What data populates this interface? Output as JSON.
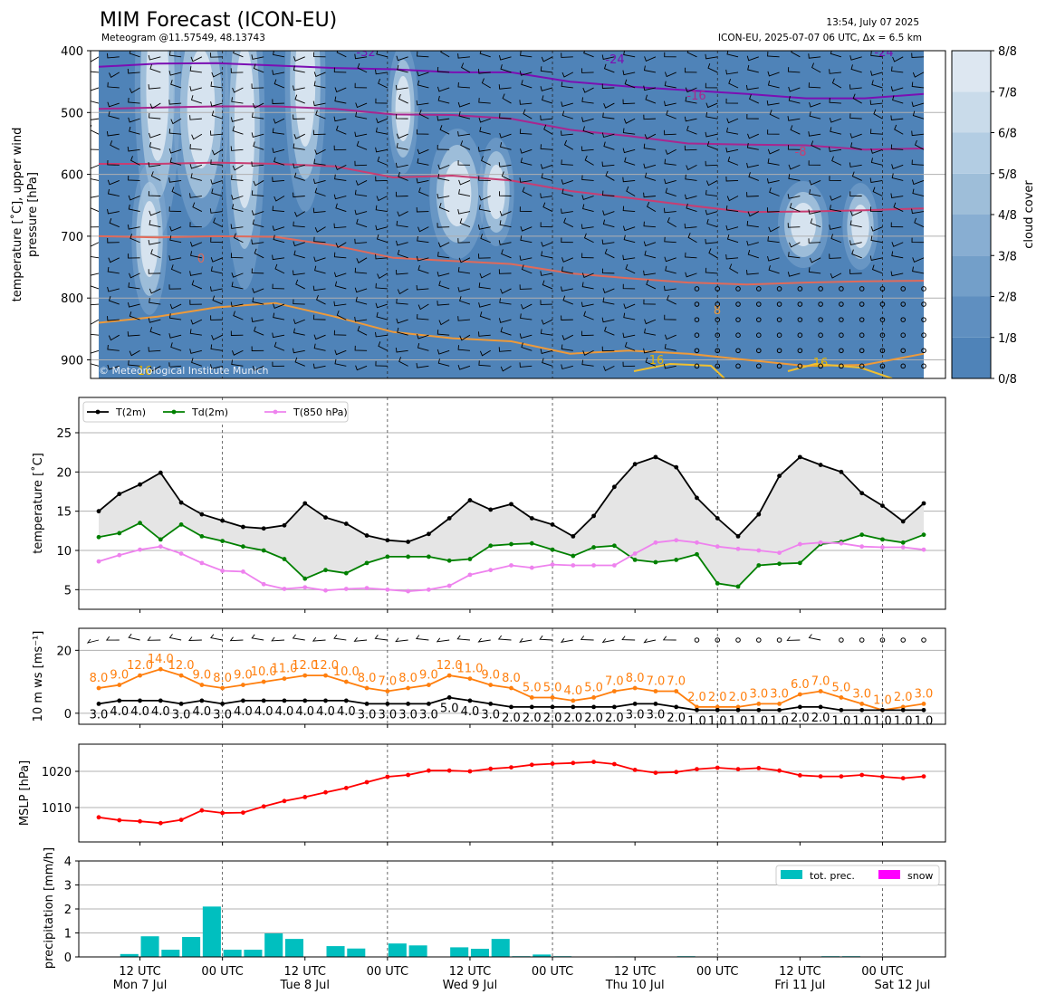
{
  "header": {
    "title": "MIM Forecast (ICON-EU)",
    "subtitle": "Meteogram @11.57549, 48.13743",
    "issued": "13:54, July 07 2025",
    "run_info": "ICON-EU, 2025-07-07 06 UTC, Δx = 6.5 km",
    "copyright": "© Meteorological Institute Munich"
  },
  "x_axis": {
    "tick_labels": [
      "12 UTC",
      "00 UTC",
      "12 UTC",
      "00 UTC",
      "12 UTC",
      "00 UTC",
      "12 UTC",
      "00 UTC",
      "12 UTC",
      "00 UTC"
    ],
    "day_labels": [
      "Mon 7 Jul",
      "Tue 8 Jul",
      "Wed 9 Jul",
      "Thu 10 Jul",
      "Fri 11 Jul",
      "Sat 12 Jul"
    ]
  },
  "chart_data": [
    {
      "type": "heatmap",
      "panel": "upper-air",
      "ylabel": "temperature [˚C], upper wind pressure [hPa]",
      "y_ticks": [
        400,
        500,
        600,
        700,
        800,
        900
      ],
      "ylim": [
        930,
        400
      ],
      "colorbar": {
        "label": "cloud cover",
        "ticks": [
          "0/8",
          "1/8",
          "2/8",
          "3/8",
          "4/8",
          "5/8",
          "6/8",
          "7/8",
          "8/8"
        ],
        "colors": [
          "#4f83b8",
          "#5f8fc0",
          "#739fc9",
          "#88aed2",
          "#9ebed9",
          "#b3cde3",
          "#c9dbea",
          "#dde7f1",
          "#f1f6fa"
        ]
      },
      "isotherm_labels": [
        "-32",
        "-24",
        "-24",
        "-16",
        "-8",
        "0",
        "8",
        "16",
        "16",
        "16"
      ],
      "isotherms": [
        {
          "label": "-24",
          "color": "#7b0fb3",
          "values": [
            426,
            421,
            420,
            424,
            428,
            430,
            435,
            435,
            450,
            458,
            464,
            470,
            477,
            477,
            470
          ]
        },
        {
          "label": "-16",
          "color": "#a8268f",
          "values": [
            494,
            492,
            490,
            490,
            494,
            503,
            504,
            510,
            528,
            538,
            550,
            552,
            553,
            560,
            558
          ]
        },
        {
          "label": "-8",
          "color": "#c83d72",
          "values": [
            583,
            583,
            581,
            583,
            587,
            605,
            602,
            610,
            627,
            638,
            650,
            661,
            660,
            658,
            655
          ]
        },
        {
          "label": "0",
          "color": "#e06a5a",
          "values": [
            700,
            702,
            700,
            701,
            715,
            735,
            740,
            745,
            760,
            768,
            775,
            778,
            775,
            773,
            772
          ]
        },
        {
          "label": "8",
          "color": "#ee9a3a",
          "values": [
            840,
            830,
            815,
            808,
            830,
            855,
            865,
            870,
            890,
            885,
            890,
            900,
            910,
            908,
            890
          ]
        }
      ]
    },
    {
      "type": "line",
      "panel": "temperature",
      "ylabel": "temperature [˚C]",
      "ylim": [
        2.5,
        29.5
      ],
      "y_ticks": [
        5,
        10,
        15,
        20,
        25
      ],
      "legend_position": "top-left",
      "series": [
        {
          "name": "T(2m)",
          "color": "#000000",
          "values": [
            15.0,
            17.2,
            18.4,
            19.9,
            16.1,
            14.6,
            13.8,
            13.0,
            12.8,
            13.2,
            16.0,
            14.2,
            13.4,
            11.9,
            11.3,
            11.1,
            12.1,
            14.1,
            16.4,
            15.2,
            15.9,
            14.1,
            13.3,
            11.8,
            14.4,
            18.1,
            21.0,
            21.9,
            20.6,
            16.7,
            14.1,
            11.8,
            14.6,
            19.5,
            21.9,
            20.9,
            20.0,
            17.3,
            15.7,
            13.7,
            16.0
          ]
        },
        {
          "name": "Td(2m)",
          "color": "#008000",
          "values": [
            11.7,
            12.2,
            13.5,
            11.4,
            13.3,
            11.8,
            11.2,
            10.5,
            10.0,
            8.9,
            6.4,
            7.5,
            7.1,
            8.4,
            9.2,
            9.2,
            9.2,
            8.7,
            8.9,
            10.6,
            10.8,
            10.9,
            10.1,
            9.3,
            10.4,
            10.6,
            8.8,
            8.5,
            8.8,
            9.5,
            5.8,
            5.4,
            8.1,
            8.3,
            8.4,
            10.8,
            11.1,
            12.0,
            11.4,
            11.0,
            12.0
          ]
        },
        {
          "name": "T(850 hPa)",
          "color": "#ee82ee",
          "values": [
            8.6,
            9.4,
            10.1,
            10.5,
            9.6,
            8.4,
            7.4,
            7.3,
            5.7,
            5.1,
            5.3,
            4.9,
            5.1,
            5.2,
            5.0,
            4.8,
            5.0,
            5.5,
            6.9,
            7.5,
            8.1,
            7.8,
            8.2,
            8.1,
            8.1,
            8.1,
            9.6,
            11.0,
            11.3,
            11.0,
            10.5,
            10.2,
            10.0,
            9.7,
            10.8,
            11.0,
            10.9,
            10.5,
            10.4,
            10.4,
            10.1
          ]
        }
      ]
    },
    {
      "type": "line",
      "panel": "wind",
      "ylabel": "10 m ws [ms⁻¹]",
      "ylim": [
        -3.5,
        27
      ],
      "y_ticks": [
        0,
        20
      ],
      "series": [
        {
          "name": "gust",
          "color": "#ff7f0e",
          "values": [
            8.0,
            9.0,
            12.0,
            14.0,
            12.0,
            9.0,
            8.0,
            9.0,
            10.0,
            11.0,
            12.0,
            12.0,
            10.0,
            8.0,
            7.0,
            8.0,
            9.0,
            12.0,
            11.0,
            9.0,
            8.0,
            5.0,
            5.0,
            4.0,
            5.0,
            7.0,
            8.0,
            7.0,
            7.0,
            2.0,
            2.0,
            2.0,
            3.0,
            3.0,
            6.0,
            7.0,
            5.0,
            3.0,
            1.0,
            2.0,
            3.0
          ]
        },
        {
          "name": "mean",
          "color": "#000000",
          "values": [
            3.0,
            4.0,
            4.0,
            4.0,
            3.0,
            4.0,
            3.0,
            4.0,
            4.0,
            4.0,
            4.0,
            4.0,
            4.0,
            3.0,
            3.0,
            3.0,
            3.0,
            5.0,
            4.0,
            3.0,
            2.0,
            2.0,
            2.0,
            2.0,
            2.0,
            2.0,
            3.0,
            3.0,
            2.0,
            1.0,
            1.0,
            1.0,
            1.0,
            1.0,
            2.0,
            2.0,
            1.0,
            1.0,
            1.0,
            1.0,
            1.0
          ]
        },
        {
          "name": "gust_labels",
          "labels": [
            "8.0",
            "9.0",
            "12.0",
            "14.0",
            "12.0",
            "9.0",
            "8.0",
            "9.0",
            "10.0",
            "11.0",
            "12.0",
            "12.0",
            "10.0",
            "8.0",
            "7.0",
            "8.0",
            "9.0",
            "12.0",
            "11.0",
            "9.0",
            "8.0",
            "5.0",
            "5.0",
            "4.0",
            "5.0",
            "7.0",
            "8.0",
            "7.0",
            "7.0",
            "2.0",
            "2.0",
            "2.0",
            "3.0",
            "3.0",
            "6.0",
            "7.0",
            "5.0",
            "3.0",
            "1.0",
            "2.0",
            "3.0"
          ]
        },
        {
          "name": "mean_labels",
          "labels": [
            "3.0",
            "4.0",
            "4.0",
            "4.0",
            "3.0",
            "4.0",
            "3.0",
            "4.0",
            "4.0",
            "4.0",
            "4.0",
            "4.0",
            "4.0",
            "3.0",
            "3.0",
            "3.0",
            "3.0",
            "5.0",
            "4.0",
            "3.0",
            "2.0",
            "2.0",
            "2.0",
            "2.0",
            "2.0",
            "2.0",
            "3.0",
            "3.0",
            "2.0",
            "1.0",
            "1.0",
            "1.0",
            "1.0",
            "1.0",
            "2.0",
            "2.0",
            "1.0",
            "1.0",
            "1.0",
            "1.0",
            "1.0"
          ]
        }
      ]
    },
    {
      "type": "line",
      "panel": "pressure",
      "ylabel": "MSLP [hPa]",
      "ylim": [
        1000.5,
        1027.5
      ],
      "y_ticks": [
        1010,
        1020
      ],
      "series": [
        {
          "name": "MSLP",
          "color": "#ff0000",
          "values": [
            1007.3,
            1006.5,
            1006.2,
            1005.7,
            1006.6,
            1009.2,
            1008.5,
            1008.6,
            1010.3,
            1011.8,
            1012.9,
            1014.2,
            1015.4,
            1017.0,
            1018.5,
            1019.0,
            1020.2,
            1020.2,
            1020.0,
            1020.7,
            1021.1,
            1021.8,
            1022.1,
            1022.3,
            1022.6,
            1022.0,
            1020.4,
            1019.6,
            1019.8,
            1020.6,
            1021.0,
            1020.6,
            1020.9,
            1020.2,
            1018.9,
            1018.6,
            1018.6,
            1019.0,
            1018.5,
            1018.1,
            1018.6
          ]
        }
      ]
    },
    {
      "type": "bar",
      "panel": "precipitation",
      "ylabel": "precipitation [mm/h]",
      "ylim": [
        0,
        4
      ],
      "y_ticks": [
        0,
        1,
        2,
        3,
        4
      ],
      "legend_position": "top-right",
      "series": [
        {
          "name": "tot. prec.",
          "color": "#00bfbf",
          "values": [
            0.0,
            0.12,
            0.86,
            0.3,
            0.83,
            2.1,
            0.3,
            0.3,
            0.98,
            0.75,
            0.0,
            0.45,
            0.35,
            0.0,
            0.56,
            0.48,
            0.0,
            0.4,
            0.34,
            0.75,
            0.03,
            0.1,
            0.03,
            0.0,
            0.0,
            0.02,
            0.0,
            0.0,
            0.03,
            0.0,
            0.0,
            0.0,
            0.0,
            0.0,
            0.0,
            0.03,
            0.03,
            0.0,
            0.0,
            0.0,
            0.0
          ]
        },
        {
          "name": "snow",
          "color": "#ff00ff",
          "values": [
            0.0,
            0.0,
            0.0,
            0.0,
            0.0,
            0.0,
            0.0,
            0.0,
            0.0,
            0.0,
            0.0,
            0.0,
            0.0,
            0.0,
            0.0,
            0.0,
            0.0,
            0.0,
            0.0,
            0.0,
            0.0,
            0.0,
            0.0,
            0.0,
            0.0,
            0.0,
            0.0,
            0.0,
            0.0,
            0.0,
            0.0,
            0.0,
            0.0,
            0.0,
            0.0,
            0.0,
            0.0,
            0.0,
            0.0,
            0.0,
            0.0
          ]
        }
      ]
    }
  ]
}
